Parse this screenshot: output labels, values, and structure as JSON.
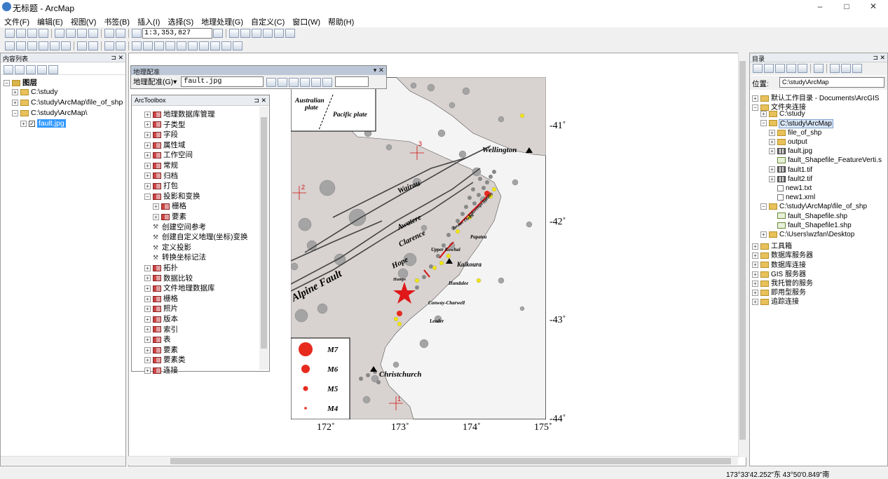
{
  "window": {
    "title": "无标题 - ArcMap",
    "minimize": "–",
    "maximize": "□",
    "close": "✕"
  },
  "menu": [
    "文件(F)",
    "编辑(E)",
    "视图(V)",
    "书签(B)",
    "插入(I)",
    "选择(S)",
    "地理处理(G)",
    "自定义(C)",
    "窗口(W)",
    "帮助(H)"
  ],
  "toolbar": {
    "scale": "1:3,353,827"
  },
  "toc": {
    "title": "内容列表",
    "root": "图层",
    "items": [
      "C:\\study",
      "C:\\study\\ArcMap\\file_of_shp",
      "C:\\study\\ArcMap\\"
    ],
    "layer": "fault.jpg"
  },
  "georef": {
    "title": "地理配准",
    "menu_label": "地理配准(G)▾",
    "layer": "fault.jpg"
  },
  "arctoolbox": {
    "title": "ArcToolbox",
    "items": [
      {
        "label": "地理数据库管理",
        "kind": "box",
        "indent": 0
      },
      {
        "label": "子类型",
        "kind": "box",
        "indent": 0
      },
      {
        "label": "字段",
        "kind": "box",
        "indent": 0
      },
      {
        "label": "属性域",
        "kind": "box",
        "indent": 0
      },
      {
        "label": "工作空间",
        "kind": "box",
        "indent": 0
      },
      {
        "label": "常规",
        "kind": "box",
        "indent": 0
      },
      {
        "label": "归档",
        "kind": "box",
        "indent": 0
      },
      {
        "label": "打包",
        "kind": "box",
        "indent": 0
      },
      {
        "label": "投影和变换",
        "kind": "box",
        "indent": 0,
        "open": true
      },
      {
        "label": "栅格",
        "kind": "box",
        "indent": 1
      },
      {
        "label": "要素",
        "kind": "box",
        "indent": 1
      },
      {
        "label": "创建空间参考",
        "kind": "tool",
        "indent": 1
      },
      {
        "label": "创建自定义地理(坐标)变换",
        "kind": "tool",
        "indent": 1
      },
      {
        "label": "定义投影",
        "kind": "tool",
        "indent": 1
      },
      {
        "label": "转换坐标记法",
        "kind": "tool",
        "indent": 1
      },
      {
        "label": "拓扑",
        "kind": "box",
        "indent": 0
      },
      {
        "label": "数据比较",
        "kind": "box",
        "indent": 0
      },
      {
        "label": "文件地理数据库",
        "kind": "box",
        "indent": 0
      },
      {
        "label": "栅格",
        "kind": "box",
        "indent": 0
      },
      {
        "label": "照片",
        "kind": "box",
        "indent": 0
      },
      {
        "label": "版本",
        "kind": "box",
        "indent": 0
      },
      {
        "label": "索引",
        "kind": "box",
        "indent": 0
      },
      {
        "label": "表",
        "kind": "box",
        "indent": 0
      },
      {
        "label": "要素",
        "kind": "box",
        "indent": 0
      },
      {
        "label": "要素类",
        "kind": "box",
        "indent": 0
      },
      {
        "label": "连接",
        "kind": "box",
        "indent": 0
      }
    ]
  },
  "catalog": {
    "title": "目录",
    "location_label": "位置:",
    "location": "C:\\study\\ArcMap",
    "tree": [
      {
        "label": "默认工作目录 - Documents\\ArcGIS",
        "indent": 0,
        "exp": "+",
        "icon": "folder"
      },
      {
        "label": "文件夹连接",
        "indent": 0,
        "exp": "-",
        "icon": "folder"
      },
      {
        "label": "C:\\study",
        "indent": 1,
        "exp": "+",
        "icon": "folder"
      },
      {
        "label": "C:\\study\\ArcMap",
        "indent": 1,
        "exp": "-",
        "icon": "folder",
        "selected": true
      },
      {
        "label": "file_of_shp",
        "indent": 2,
        "exp": "+",
        "icon": "folder"
      },
      {
        "label": "output",
        "indent": 2,
        "exp": "+",
        "icon": "folder"
      },
      {
        "label": "fault.jpg",
        "indent": 2,
        "exp": "+",
        "icon": "raster"
      },
      {
        "label": "fault_Shapefile_FeatureVerti.s",
        "indent": 2,
        "exp": "",
        "icon": "shp"
      },
      {
        "label": "fault1.tif",
        "indent": 2,
        "exp": "+",
        "icon": "raster"
      },
      {
        "label": "fault2.tif",
        "indent": 2,
        "exp": "+",
        "icon": "raster"
      },
      {
        "label": "new1.txt",
        "indent": 2,
        "exp": "",
        "icon": "file"
      },
      {
        "label": "new1.xml",
        "indent": 2,
        "exp": "",
        "icon": "file"
      },
      {
        "label": "C:\\study\\ArcMap\\file_of_shp",
        "indent": 1,
        "exp": "-",
        "icon": "folder"
      },
      {
        "label": "fault_Shapefile.shp",
        "indent": 2,
        "exp": "",
        "icon": "shp"
      },
      {
        "label": "fault_Shapefile1.shp",
        "indent": 2,
        "exp": "",
        "icon": "shp"
      },
      {
        "label": "C:\\Users\\wzfan\\Desktop",
        "indent": 1,
        "exp": "+",
        "icon": "folder"
      },
      {
        "label": "工具箱",
        "indent": 0,
        "exp": "+",
        "icon": "folder"
      },
      {
        "label": "数据库服务器",
        "indent": 0,
        "exp": "+",
        "icon": "folder"
      },
      {
        "label": "数据库连接",
        "indent": 0,
        "exp": "+",
        "icon": "folder"
      },
      {
        "label": "GIS 服务器",
        "indent": 0,
        "exp": "+",
        "icon": "folder"
      },
      {
        "label": "我托管的服务",
        "indent": 0,
        "exp": "+",
        "icon": "folder"
      },
      {
        "label": "即用型服务",
        "indent": 0,
        "exp": "+",
        "icon": "folder"
      },
      {
        "label": "追踪连接",
        "indent": 0,
        "exp": "+",
        "icon": "folder"
      }
    ]
  },
  "map": {
    "lon_ticks": [
      "172˚",
      "173˚",
      "174˚",
      "175˚"
    ],
    "lat_ticks": [
      "-41˚",
      "-42˚",
      "-43˚",
      "-44˚"
    ],
    "inset": {
      "a": "Australian",
      "b": "plate",
      "c": "Pacific plate"
    },
    "labels": {
      "wellington": "Wellington",
      "wairau": "Wairau",
      "awatere": "Awatere",
      "clarence": "Clarence",
      "hope": "Hope",
      "alpine": "Alpine Fault",
      "kaikoura": "Kaikoura",
      "christchurch": "Christchurch",
      "upper_kowhai": "Upper Kowhai",
      "jordan": "Jordan Thrust",
      "kekerengu": "Kekerengu",
      "needles": "Needles",
      "papatea": "Papatea",
      "hundalee": "Hundalee",
      "conway": "Conway-Charwell",
      "leader": "Leader",
      "humps": "Humps",
      "cp1": "1",
      "cp2": "2",
      "cp3": "3"
    },
    "legend": [
      "M7",
      "M6",
      "M5",
      "M4"
    ]
  },
  "status": {
    "coords": "173°33'42.252\"东  43°50'0.849\"南"
  }
}
